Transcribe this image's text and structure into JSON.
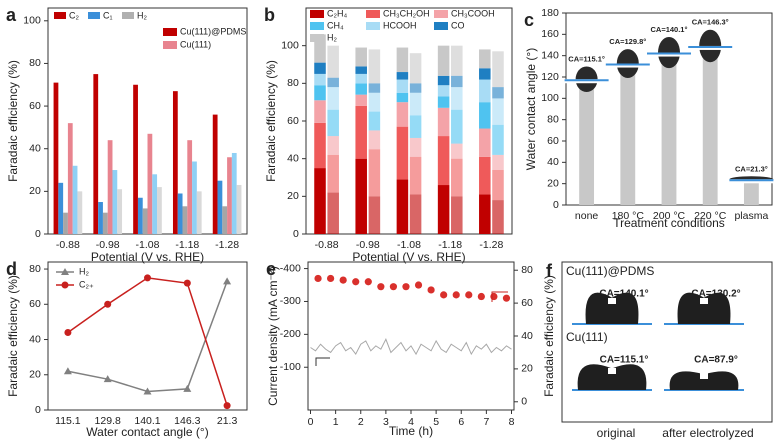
{
  "chart_data": [
    {
      "type": "grouped_bar",
      "panel_label": "a",
      "ylabel": "Faradaic efficiency (%)",
      "xlabel": "Potential (V vs. RHE)",
      "categories": [
        "-0.88",
        "-0.98",
        "-1.08",
        "-1.18",
        "-1.28"
      ],
      "ylim": [
        0,
        106
      ],
      "yticks": [
        0,
        20,
        40,
        60,
        80,
        100
      ],
      "legend": [
        {
          "name": "C₂",
          "color": "#c00000"
        },
        {
          "name": "C₁",
          "color": "#3b8fd9"
        },
        {
          "name": "H₂",
          "color": "#b0b0b0"
        }
      ],
      "variants": [
        {
          "name": "Cu(111)@PDMS",
          "color": "#c00000"
        },
        {
          "name": "Cu(111)",
          "color": "#e8848f"
        }
      ],
      "series": [
        {
          "color": "#c00000",
          "values": [
            71,
            75,
            70,
            67,
            56
          ]
        },
        {
          "color": "#3b8fd9",
          "values": [
            24,
            15,
            17,
            19,
            25
          ]
        },
        {
          "color": "#a6a6a6",
          "values": [
            10,
            10,
            12,
            13,
            13
          ]
        },
        {
          "color": "#e8848f",
          "values": [
            52,
            44,
            47,
            44,
            36
          ]
        },
        {
          "color": "#8fd0f5",
          "values": [
            32,
            30,
            28,
            34,
            38
          ]
        },
        {
          "color": "#d9d9d9",
          "values": [
            20,
            21,
            22,
            20,
            23
          ]
        }
      ]
    },
    {
      "type": "stacked_bar",
      "panel_label": "b",
      "ylabel": "Faradaic efficiency (%)",
      "xlabel": "Potential (V vs. RHE)",
      "categories": [
        "-0.88",
        "-0.98",
        "-1.08",
        "-1.18",
        "-1.28"
      ],
      "ylim": [
        0,
        120
      ],
      "yticks": [
        0,
        20,
        40,
        60,
        80,
        100
      ],
      "legend": [
        {
          "name": "C₂H₄",
          "color": "#c00000"
        },
        {
          "name": "CH₃CH₂OH",
          "color": "#ef5a5a"
        },
        {
          "name": "CH₃COOH",
          "color": "#f4a3a8"
        },
        {
          "name": "CH₄",
          "color": "#4fc3f0"
        },
        {
          "name": "HCOOH",
          "color": "#a8dcf5"
        },
        {
          "name": "CO",
          "color": "#1f7fc2"
        },
        {
          "name": "H₂",
          "color": "#c8c8c8"
        }
      ],
      "stacks": [
        {
          "alpha": 1,
          "values": [
            [
              35,
              24,
              12,
              8,
              6,
              6,
              15
            ],
            [
              40,
              28,
              6,
              6,
              5,
              4,
              10
            ],
            [
              29,
              28,
              13,
              5,
              7,
              4,
              13
            ],
            [
              26,
              26,
              15,
              6,
              6,
              5,
              16
            ],
            [
              21,
              20,
              15,
              14,
              12,
              6,
              10
            ]
          ]
        },
        {
          "alpha": 0.6,
          "values": [
            [
              22,
              20,
              10,
              14,
              12,
              5,
              17
            ],
            [
              20,
              25,
              10,
              10,
              10,
              5,
              18
            ],
            [
              21,
              20,
              10,
              12,
              12,
              5,
              16
            ],
            [
              20,
              20,
              8,
              18,
              12,
              6,
              16
            ],
            [
              18,
              16,
              8,
              16,
              14,
              6,
              19
            ]
          ]
        }
      ]
    },
    {
      "type": "bar",
      "panel_label": "c",
      "ylabel": "Water contact angle (°)",
      "xlabel": "Treatment conditions",
      "categories": [
        "none",
        "180 °C",
        "200 °C",
        "220 °C",
        "plasma"
      ],
      "values": [
        115.1,
        129.8,
        140.1,
        146.3,
        21.3
      ],
      "value_labels": [
        "CA=115.1°",
        "CA=129.8°",
        "CA=140.1°",
        "CA=146.3°",
        "CA=21.3°"
      ],
      "color": "#c8c8c8",
      "ylim": [
        0,
        180
      ],
      "yticks": [
        0,
        20,
        40,
        60,
        80,
        100,
        120,
        140,
        160,
        180
      ]
    },
    {
      "type": "line",
      "panel_label": "d",
      "ylabel": "Faradaic efficiency (%)",
      "xlabel": "Water contact angle (°)",
      "categories": [
        "115.1",
        "129.8",
        "140.1",
        "146.3",
        "21.3"
      ],
      "ylim": [
        0,
        84
      ],
      "yticks": [
        0,
        20,
        40,
        60,
        80
      ],
      "series": [
        {
          "name": "H₂",
          "color": "#808080",
          "marker": "triangle",
          "values": [
            22,
            17.5,
            10.5,
            12,
            73
          ]
        },
        {
          "name": "C₂₊",
          "color": "#c8201e",
          "marker": "circle",
          "values": [
            44,
            60,
            75,
            72,
            2.5
          ]
        }
      ]
    },
    {
      "type": "dual",
      "panel_label": "e",
      "ylabel": "Current density (mA cm⁻²)",
      "y2label": "Faradaic efficiency (%)",
      "xlabel": "Time (h)",
      "xlim": [
        -0.1,
        8.1
      ],
      "xticks": [
        0,
        1,
        2,
        3,
        4,
        5,
        6,
        7,
        8
      ],
      "ylim": [
        30,
        -420
      ],
      "yticks": [
        -400,
        -300,
        -200,
        -100
      ],
      "y2lim": [
        -5,
        85
      ],
      "y2ticks": [
        0,
        20,
        40,
        60,
        80
      ],
      "series": [
        {
          "color": "#a8a8a8",
          "x": [
            0,
            0.2,
            0.4,
            0.6,
            0.8,
            1,
            1.2,
            1.4,
            1.6,
            1.8,
            2,
            2.2,
            2.4,
            2.6,
            2.8,
            3,
            3.2,
            3.4,
            3.6,
            3.8,
            4,
            4.2,
            4.4,
            4.6,
            4.8,
            5,
            5.2,
            5.4,
            5.6,
            5.8,
            6,
            6.2,
            6.4,
            6.6,
            6.8,
            7,
            7.2,
            7.4,
            7.6,
            7.8,
            8
          ],
          "values": [
            -160,
            -150,
            -170,
            -155,
            -145,
            -165,
            -175,
            -150,
            -160,
            -140,
            -170,
            -180,
            -150,
            -165,
            -155,
            -185,
            -145,
            -160,
            -175,
            -150,
            -165,
            -140,
            -170,
            -160,
            -150,
            -180,
            -155,
            -145,
            -170,
            -160,
            -150,
            -175,
            -140,
            -165,
            -155,
            -170,
            -145,
            -160,
            -150,
            -165,
            -155
          ]
        },
        {
          "color": "#d9302c",
          "axis": "y2",
          "marker": "circle",
          "x": [
            0.3,
            0.8,
            1.3,
            1.8,
            2.3,
            2.8,
            3.3,
            3.8,
            4.3,
            4.8,
            5.3,
            5.8,
            6.3,
            6.8,
            7.3,
            7.8
          ],
          "values": [
            75,
            75,
            74,
            73,
            73,
            70,
            70,
            70,
            71,
            68,
            65,
            65,
            65,
            64,
            64,
            63
          ]
        }
      ]
    }
  ],
  "panel_f": {
    "panel_label": "f",
    "rows": [
      {
        "label": "Cu(111)@PDMS",
        "angles": [
          "CA=140.1°",
          "CA=130.2°"
        ]
      },
      {
        "label": "Cu(111)",
        "angles": [
          "CA=115.1°",
          "CA=87.9°"
        ]
      }
    ],
    "columns": [
      "original",
      "after electrolyzed"
    ]
  }
}
